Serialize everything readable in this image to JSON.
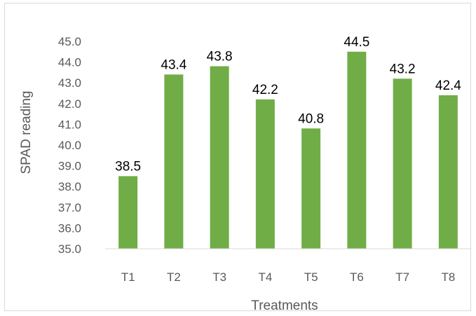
{
  "chart_data": {
    "type": "bar",
    "categories": [
      "T1",
      "T2",
      "T3",
      "T4",
      "T5",
      "T6",
      "T7",
      "T8"
    ],
    "values": [
      38.5,
      43.4,
      43.8,
      42.2,
      40.8,
      44.5,
      43.2,
      42.4
    ],
    "data_labels": [
      "38.5",
      "43.4",
      "43.8",
      "42.2",
      "40.8",
      "44.5",
      "43.2",
      "42.4"
    ],
    "title": "",
    "xlabel": "Treatments",
    "ylabel": "SPAD reading",
    "ylim": [
      35.0,
      45.0
    ],
    "yticks": [
      "35.0",
      "36.0",
      "37.0",
      "38.0",
      "39.0",
      "40.0",
      "41.0",
      "42.0",
      "43.0",
      "44.0",
      "45.0"
    ],
    "grid": false,
    "legend": "none",
    "bar_color": "#70ad47"
  }
}
